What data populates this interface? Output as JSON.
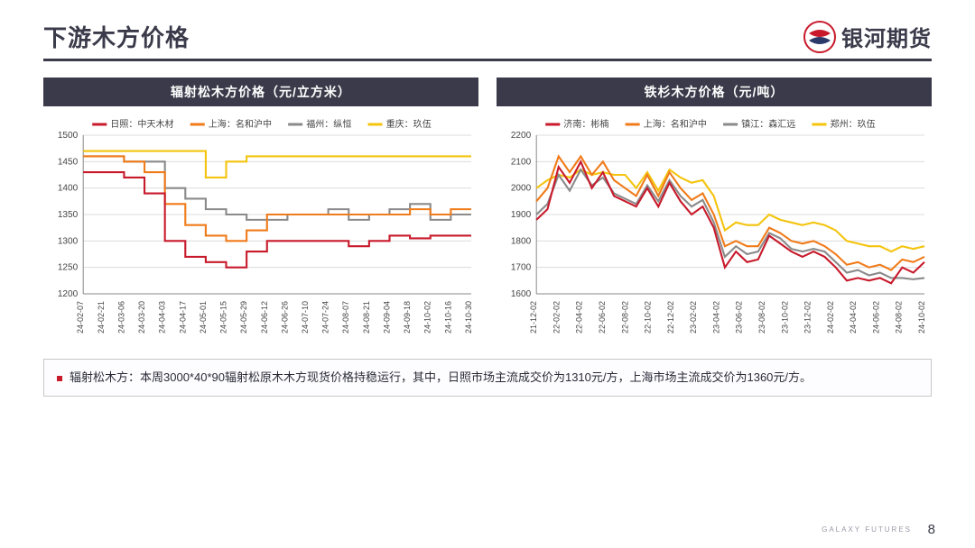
{
  "page_title": "下游木方价格",
  "brand_text": "银河期货",
  "footer_brand": "GALAXY FUTURES",
  "page_number": "8",
  "note_text": "辐射松木方：本周3000*40*90辐射松原木木方现货价格持稳运行，其中，日照市场主流成交价为1310元/方，上海市场主流成交价为1360元/方。",
  "colors": {
    "title_fg": "#3a3a4a",
    "bar_bg": "#3a3a4a",
    "grid": "#dcdcdc",
    "axis": "#888888",
    "bullet": "#c81a2b",
    "series_red": "#c81a2b",
    "series_orange": "#f07b1a",
    "series_gray": "#8a8a8a",
    "series_yellow": "#f4c40e",
    "bg": "#ffffff"
  },
  "chart_left": {
    "title": "辐射松木方价格（元/立方米）",
    "ymin": 1200,
    "ymax": 1500,
    "ystep": 50,
    "legend": [
      {
        "label": "日照：中天木材",
        "color": "#c81a2b"
      },
      {
        "label": "上海：名和沪中",
        "color": "#f07b1a"
      },
      {
        "label": "福州：纵恒",
        "color": "#8a8a8a"
      },
      {
        "label": "重庆：玖伍",
        "color": "#f4c40e"
      }
    ],
    "x_labels": [
      "24-02-07",
      "24-02-21",
      "24-03-06",
      "24-03-20",
      "24-04-03",
      "24-04-17",
      "24-05-01",
      "24-05-15",
      "24-05-29",
      "24-06-12",
      "24-06-26",
      "24-07-10",
      "24-07-24",
      "24-08-07",
      "24-08-21",
      "24-09-04",
      "24-09-18",
      "24-10-02",
      "24-10-16",
      "24-10-30"
    ],
    "series": {
      "red": [
        1430,
        1430,
        1420,
        1390,
        1300,
        1270,
        1260,
        1250,
        1280,
        1300,
        1300,
        1300,
        1300,
        1290,
        1300,
        1310,
        1305,
        1310,
        1310,
        1310
      ],
      "orange": [
        1460,
        1460,
        1450,
        1430,
        1370,
        1330,
        1310,
        1300,
        1320,
        1350,
        1350,
        1350,
        1350,
        1350,
        1350,
        1350,
        1360,
        1350,
        1360,
        1360
      ],
      "gray": [
        1460,
        1460,
        1450,
        1450,
        1400,
        1380,
        1360,
        1350,
        1340,
        1340,
        1350,
        1350,
        1360,
        1340,
        1350,
        1360,
        1370,
        1340,
        1350,
        1350
      ],
      "yellow": [
        1470,
        1470,
        1470,
        1470,
        1470,
        1470,
        1420,
        1450,
        1460,
        1460,
        1460,
        1460,
        1460,
        1460,
        1460,
        1460,
        1460,
        1460,
        1460,
        1460
      ]
    }
  },
  "chart_right": {
    "title": "铁杉木方价格（元/吨）",
    "ymin": 1600,
    "ymax": 2200,
    "ystep": 100,
    "legend": [
      {
        "label": "济南：彬楠",
        "color": "#c81a2b"
      },
      {
        "label": "上海：名和沪中",
        "color": "#f07b1a"
      },
      {
        "label": "镇江：森汇远",
        "color": "#8a8a8a"
      },
      {
        "label": "郑州：玖伍",
        "color": "#f4c40e"
      }
    ],
    "x_labels": [
      "21-12-02",
      "22-02-02",
      "22-04-02",
      "22-06-02",
      "22-08-02",
      "22-10-02",
      "22-12-02",
      "23-02-02",
      "23-04-02",
      "23-06-02",
      "23-08-02",
      "23-10-02",
      "23-12-02",
      "24-02-02",
      "24-04-02",
      "24-06-02",
      "24-08-02",
      "24-10-02"
    ],
    "n_points": 36,
    "series": {
      "red": [
        1880,
        1920,
        2080,
        2020,
        2100,
        2000,
        2060,
        1970,
        1950,
        1930,
        2000,
        1930,
        2020,
        1950,
        1900,
        1930,
        1850,
        1700,
        1760,
        1720,
        1730,
        1820,
        1790,
        1760,
        1740,
        1760,
        1740,
        1700,
        1650,
        1660,
        1650,
        1660,
        1640,
        1700,
        1680,
        1720
      ],
      "orange": [
        1950,
        2000,
        2120,
        2060,
        2120,
        2050,
        2100,
        2030,
        2000,
        1970,
        2050,
        1970,
        2060,
        2000,
        1955,
        1980,
        1900,
        1780,
        1800,
        1780,
        1780,
        1850,
        1830,
        1800,
        1790,
        1800,
        1780,
        1750,
        1710,
        1720,
        1700,
        1710,
        1690,
        1730,
        1720,
        1740
      ],
      "gray": [
        1900,
        1940,
        2050,
        1990,
        2070,
        2010,
        2040,
        1980,
        1960,
        1940,
        2010,
        1950,
        2030,
        1970,
        1930,
        1955,
        1870,
        1740,
        1780,
        1750,
        1760,
        1830,
        1810,
        1770,
        1760,
        1770,
        1760,
        1720,
        1680,
        1690,
        1670,
        1680,
        1660,
        1660,
        1655,
        1660
      ],
      "yellow": [
        2000,
        2030,
        2050,
        2040,
        2070,
        2050,
        2060,
        2050,
        2050,
        2000,
        2060,
        1990,
        2070,
        2040,
        2020,
        2030,
        1970,
        1840,
        1870,
        1860,
        1860,
        1900,
        1880,
        1870,
        1860,
        1870,
        1860,
        1840,
        1800,
        1790,
        1780,
        1780,
        1760,
        1780,
        1770,
        1780
      ]
    }
  }
}
